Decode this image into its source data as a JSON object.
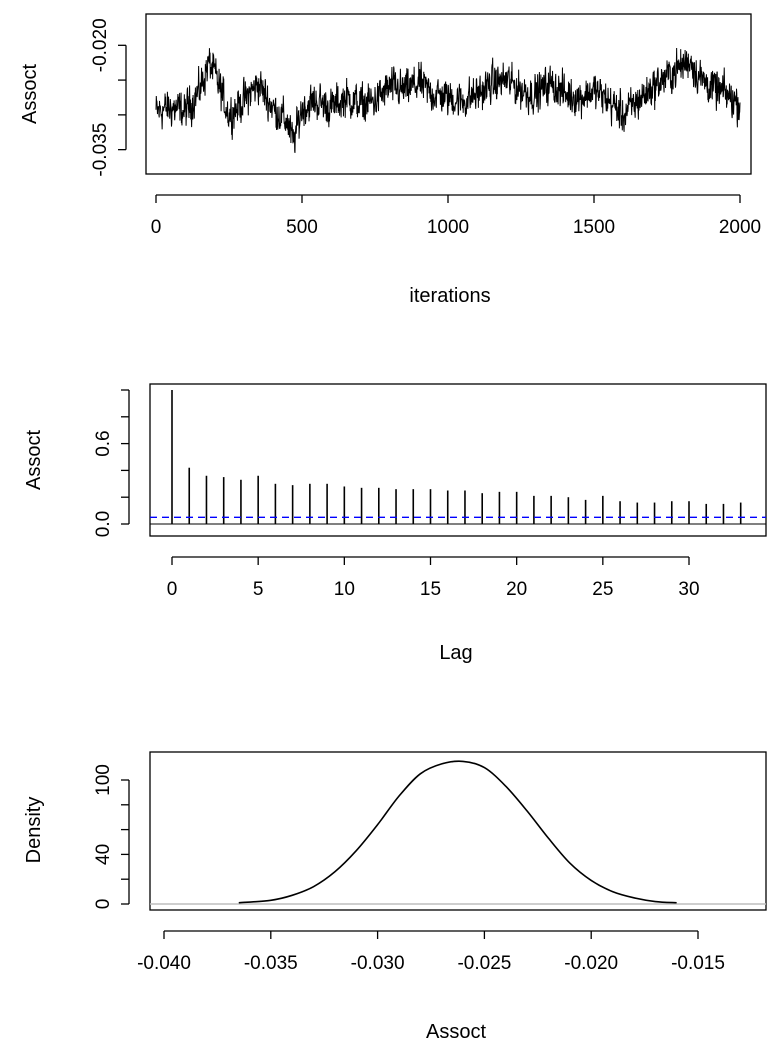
{
  "chart_data": [
    {
      "type": "line",
      "title": "",
      "xlabel": "iterations",
      "ylabel": "Assoct",
      "xlim": [
        0,
        2000
      ],
      "ylim": [
        -0.0385,
        -0.0155
      ],
      "x_ticks": [
        0,
        500,
        1000,
        1500,
        2000
      ],
      "x_tick_labels": [
        "0",
        "500",
        "1000",
        "1500",
        "2000"
      ],
      "y_ticks": [
        -0.035,
        -0.03,
        -0.025,
        -0.02
      ],
      "y_tick_labels": [
        "-0.035",
        "",
        "",
        "-0.020"
      ],
      "series": [
        {
          "x": [
            0,
            50,
            100,
            150,
            180,
            200,
            250,
            300,
            350,
            400,
            450,
            470,
            500,
            550,
            600,
            650,
            700,
            750,
            800,
            850,
            900,
            950,
            1000,
            1050,
            1100,
            1150,
            1200,
            1250,
            1300,
            1350,
            1400,
            1450,
            1500,
            1550,
            1600,
            1650,
            1700,
            1750,
            1800,
            1830,
            1850,
            1900,
            1950,
            2000
          ],
          "y": [
            -0.0295,
            -0.029,
            -0.0295,
            -0.0265,
            -0.0225,
            -0.024,
            -0.03,
            -0.028,
            -0.0255,
            -0.029,
            -0.031,
            -0.034,
            -0.029,
            -0.028,
            -0.029,
            -0.0275,
            -0.0285,
            -0.028,
            -0.026,
            -0.0265,
            -0.0255,
            -0.027,
            -0.0275,
            -0.028,
            -0.027,
            -0.0255,
            -0.025,
            -0.0265,
            -0.027,
            -0.0255,
            -0.027,
            -0.0275,
            -0.0265,
            -0.028,
            -0.03,
            -0.028,
            -0.026,
            -0.0245,
            -0.023,
            -0.022,
            -0.024,
            -0.026,
            -0.027,
            -0.0285
          ],
          "noise_amplitude": 0.0035
        }
      ]
    },
    {
      "type": "bar",
      "title": "",
      "xlabel": "Lag",
      "ylabel": "Assoct",
      "xlim": [
        -1,
        34
      ],
      "ylim": [
        -0.04,
        1.04
      ],
      "x_ticks": [
        0,
        5,
        10,
        15,
        20,
        25,
        30
      ],
      "x_tick_labels": [
        "0",
        "5",
        "10",
        "15",
        "20",
        "25",
        "30"
      ],
      "y_ticks": [
        0.0,
        0.2,
        0.4,
        0.6,
        0.8,
        1.0
      ],
      "y_tick_labels": [
        "0.0",
        "",
        "",
        "0.6",
        "",
        ""
      ],
      "categories": [
        0,
        1,
        2,
        3,
        4,
        5,
        6,
        7,
        8,
        9,
        10,
        11,
        12,
        13,
        14,
        15,
        16,
        17,
        18,
        19,
        20,
        21,
        22,
        23,
        24,
        25,
        26,
        27,
        28,
        29,
        30,
        31,
        32,
        33
      ],
      "values": [
        1.0,
        0.42,
        0.36,
        0.35,
        0.33,
        0.36,
        0.3,
        0.29,
        0.3,
        0.3,
        0.28,
        0.27,
        0.27,
        0.26,
        0.26,
        0.26,
        0.25,
        0.25,
        0.23,
        0.24,
        0.24,
        0.21,
        0.21,
        0.2,
        0.18,
        0.21,
        0.17,
        0.16,
        0.16,
        0.17,
        0.17,
        0.15,
        0.15,
        0.16
      ],
      "confidence_line": 0.05,
      "confidence_color": "#0000ff"
    },
    {
      "type": "line",
      "title": "",
      "xlabel": "Assoct",
      "ylabel": "Density",
      "xlim": [
        -0.0408,
        -0.0127
      ],
      "ylim": [
        -4,
        117
      ],
      "x_ticks": [
        -0.04,
        -0.035,
        -0.03,
        -0.025,
        -0.02,
        -0.015
      ],
      "x_tick_labels": [
        "-0.040",
        "-0.035",
        "-0.030",
        "-0.025",
        "-0.020",
        "-0.015"
      ],
      "y_ticks": [
        0,
        20,
        40,
        60,
        80,
        100
      ],
      "y_tick_labels": [
        "0",
        "",
        "40",
        "",
        "",
        "100"
      ],
      "baseline_color": "#bebebe",
      "series": [
        {
          "x": [
            -0.0365,
            -0.035,
            -0.034,
            -0.033,
            -0.032,
            -0.031,
            -0.03,
            -0.029,
            -0.028,
            -0.027,
            -0.026,
            -0.025,
            -0.024,
            -0.023,
            -0.022,
            -0.021,
            -0.02,
            -0.019,
            -0.018,
            -0.017,
            -0.016
          ],
          "y": [
            1,
            3,
            7,
            14,
            26,
            43,
            64,
            87,
            105,
            113,
            115,
            110,
            95,
            75,
            53,
            33,
            19,
            10,
            5,
            2,
            1
          ]
        }
      ]
    }
  ]
}
